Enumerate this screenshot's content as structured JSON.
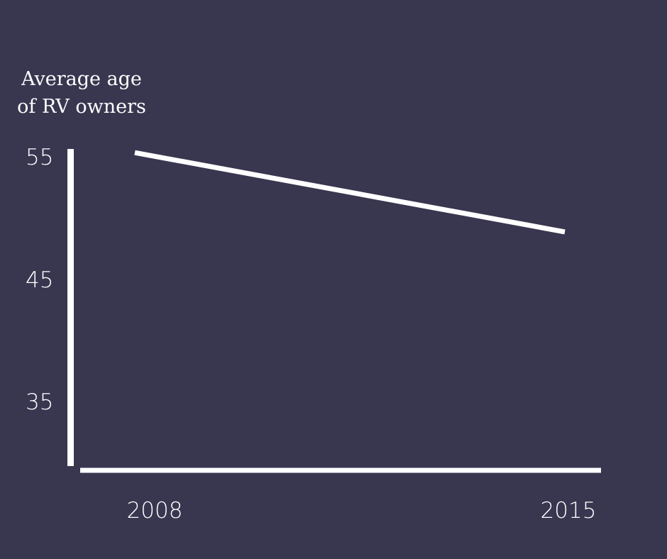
{
  "chart_data": {
    "type": "line",
    "title": "",
    "xlabel": "",
    "ylabel": "Average age of RV owners",
    "ylabel_lines": [
      "Average age",
      "of RV owners"
    ],
    "categories": [
      "2008",
      "2015"
    ],
    "series": [
      {
        "values": [
          55.7,
          49.2
        ]
      }
    ],
    "y_ticks": [
      "55",
      "45",
      "35"
    ],
    "ylim": [
      30,
      56
    ],
    "grid": false,
    "legend": "none",
    "colors": {
      "background": "#393650",
      "line": "#ffffff",
      "axis": "#ffffff",
      "text": "#ffffff"
    }
  }
}
